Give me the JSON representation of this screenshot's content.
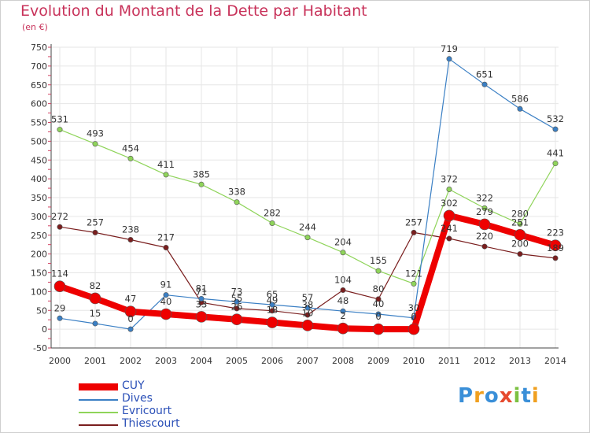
{
  "title": "Evolution du Montant de la Dette par Habitant",
  "unit": "(en €)",
  "logo": {
    "text": "Proxiti",
    "letter_colors": [
      "#3a8fd8",
      "#f0a020",
      "#3a8fd8",
      "#e64a2e",
      "#7cc142",
      "#3a8fd8",
      "#f0a020"
    ]
  },
  "chart_data": {
    "type": "line",
    "title": "Evolution du Montant de la Dette par Habitant",
    "ylabel": "(en €)",
    "xlabel": "",
    "x": [
      "2000",
      "2001",
      "2002",
      "2003",
      "2004",
      "2005",
      "2006",
      "2007",
      "2008",
      "2009",
      "2010",
      "2011",
      "2012",
      "2013",
      "2014"
    ],
    "ylim": [
      -50,
      750
    ],
    "yticks": [
      -50,
      0,
      50,
      100,
      150,
      200,
      250,
      300,
      350,
      400,
      450,
      500,
      550,
      600,
      650,
      700,
      750
    ],
    "grid": true,
    "legend": "bottom-left",
    "series": [
      {
        "name": "Thiescourt",
        "color": "#7a1e1e",
        "values": [
          272,
          257,
          238,
          217,
          71,
          55,
          49,
          38,
          104,
          80,
          257,
          241,
          220,
          200,
          189
        ],
        "labels": [
          "272",
          "257",
          "238",
          "217",
          "71",
          "55",
          "49",
          "38",
          "104",
          "80",
          "257",
          "241",
          "220",
          "200",
          "189"
        ]
      },
      {
        "name": "Evricourt",
        "color": "#8fd45a",
        "values": [
          531,
          493,
          454,
          411,
          385,
          338,
          282,
          244,
          204,
          155,
          121,
          372,
          322,
          280,
          441
        ],
        "labels": [
          "531",
          "493",
          "454",
          "411",
          "385",
          "338",
          "282",
          "244",
          "204",
          "155",
          "121",
          "372",
          "322",
          "280",
          "441"
        ]
      },
      {
        "name": "Dives",
        "color": "#3a7fc4",
        "values": [
          29,
          15,
          0,
          91,
          81,
          73,
          65,
          57,
          48,
          40,
          30,
          719,
          651,
          586,
          532
        ],
        "labels": [
          "29",
          "15",
          "0",
          "91",
          "81",
          "73",
          "65",
          "57",
          "48",
          "40",
          "30",
          "719",
          "651",
          "586",
          "532"
        ]
      },
      {
        "name": "CUY",
        "color": "#ee0000",
        "values": [
          114,
          82,
          47,
          40,
          33,
          26,
          18,
          10,
          2,
          0,
          0,
          302,
          279,
          251,
          223
        ],
        "labels": [
          "114",
          "82",
          "47",
          "40",
          "33",
          "26",
          "18",
          "10",
          "2",
          "0",
          "0",
          "302",
          "279",
          "251",
          "223"
        ]
      }
    ]
  }
}
